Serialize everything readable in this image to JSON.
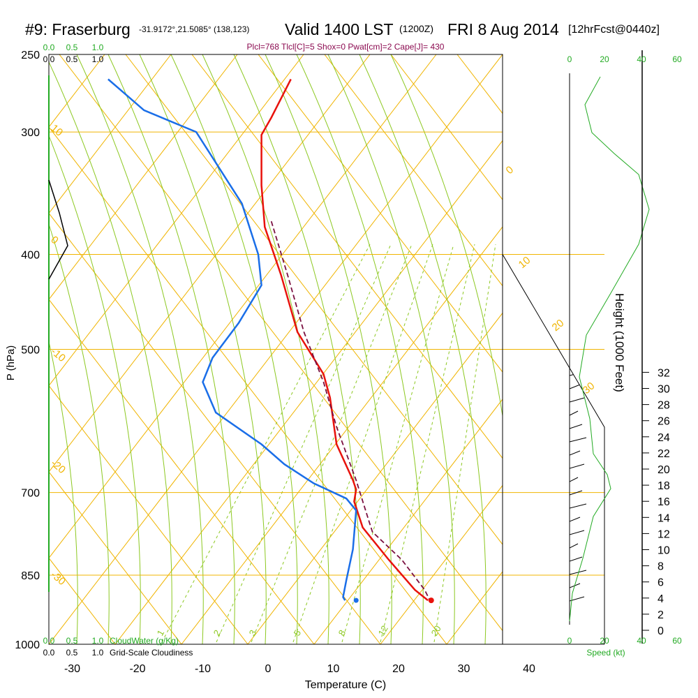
{
  "header": {
    "station": "#9: Fraserburg",
    "coords": "-31.9172°,21.5085° (138,123)",
    "valid": "Valid 1400 LST",
    "zulu": "(1200Z)",
    "date": "FRI 8 Aug 2014",
    "forecast": "[12hrFcst@0440z]"
  },
  "indices": "Plcl=768 Tlcl[C]=5 Shox=0 Pwat[cm]=2 Cape[J]= 430",
  "colors": {
    "temperature": "#e8120c",
    "dewpoint": "#1a6ee8",
    "parcel": "#7a1040",
    "isotherm": "#f0b400",
    "dry_adiabat": "#8cc820",
    "mixing_ratio": "#8cc820",
    "green_text": "#22aa22",
    "frame": "#000000"
  },
  "chart_data": {
    "type": "line",
    "title": "Valid 1400 LST (1200Z) FRI 8 Aug 2014",
    "xlabel": "Temperature (C)",
    "ylabel": "P (hPa)",
    "y2label": "Height (1000 Feet)",
    "x_ticks": [
      "-30",
      "-20",
      "-10",
      "0",
      "10",
      "20",
      "30",
      "40"
    ],
    "pressure_ticks": [
      "250",
      "300",
      "400",
      "500",
      "700",
      "850",
      "1000"
    ],
    "height_ticks": [
      "0",
      "2",
      "4",
      "6",
      "8",
      "10",
      "12",
      "14",
      "16",
      "18",
      "20",
      "22",
      "24",
      "26",
      "28",
      "30",
      "32"
    ],
    "top_scale": [
      "0.0",
      "0.5",
      "1.0"
    ],
    "bottom_scale_labels": [
      "0.0",
      "0.5",
      "1.0",
      "CloudWater (g/Kg)"
    ],
    "cloudiness_labels": [
      "0.0",
      "0.5",
      "1.0",
      "Grid-Scale Cloudiness"
    ],
    "speed_ticks": [
      "0",
      "20",
      "40",
      "60"
    ],
    "speed_label": "Speed (kt)",
    "isotherm_labels": [
      "10",
      "0",
      "-10",
      "-20",
      "-30",
      "0",
      "10",
      "20",
      "30"
    ],
    "mixing_ratio_labels": [
      "1",
      "2",
      "3",
      "5",
      "8",
      "12",
      "20"
    ],
    "series": [
      {
        "name": "temperature",
        "points": [
          {
            "p": 265,
            "t": 3.5
          },
          {
            "p": 290,
            "t": 0.5
          },
          {
            "p": 302,
            "t": -1
          },
          {
            "p": 340,
            "t": -1
          },
          {
            "p": 375,
            "t": -0.5
          },
          {
            "p": 420,
            "t": 2
          },
          {
            "p": 480,
            "t": 4.5
          },
          {
            "p": 530,
            "t": 8.5
          },
          {
            "p": 560,
            "t": 9.5
          },
          {
            "p": 625,
            "t": 10.5
          },
          {
            "p": 680,
            "t": 13
          },
          {
            "p": 695,
            "t": 13.5
          },
          {
            "p": 715,
            "t": 13.2
          },
          {
            "p": 760,
            "t": 14.5
          },
          {
            "p": 820,
            "t": 18.5
          },
          {
            "p": 880,
            "t": 22.5
          },
          {
            "p": 902,
            "t": 24.5
          }
        ]
      },
      {
        "name": "dewpoint",
        "points": [
          {
            "p": 265,
            "t": -24.5
          },
          {
            "p": 285,
            "t": -19
          },
          {
            "p": 300,
            "t": -11
          },
          {
            "p": 355,
            "t": -4
          },
          {
            "p": 400,
            "t": -1.5
          },
          {
            "p": 430,
            "t": -1
          },
          {
            "p": 470,
            "t": -4.5
          },
          {
            "p": 510,
            "t": -8.5
          },
          {
            "p": 540,
            "t": -10
          },
          {
            "p": 580,
            "t": -8
          },
          {
            "p": 625,
            "t": -1
          },
          {
            "p": 655,
            "t": 2.5
          },
          {
            "p": 685,
            "t": 7
          },
          {
            "p": 710,
            "t": 12
          },
          {
            "p": 730,
            "t": 13.5
          },
          {
            "p": 800,
            "t": 13
          },
          {
            "p": 860,
            "t": 12
          },
          {
            "p": 895,
            "t": 11.5
          },
          {
            "p": 902,
            "t": 11.8
          }
        ]
      },
      {
        "name": "parcel",
        "points": [
          {
            "p": 370,
            "t": 0.5
          },
          {
            "p": 420,
            "t": 3
          },
          {
            "p": 480,
            "t": 5.5
          },
          {
            "p": 540,
            "t": 8.5
          },
          {
            "p": 600,
            "t": 10.5
          },
          {
            "p": 680,
            "t": 13.5
          },
          {
            "p": 750,
            "t": 15.5
          },
          {
            "p": 768,
            "t": 16
          },
          {
            "p": 820,
            "t": 20.5
          },
          {
            "p": 880,
            "t": 24
          },
          {
            "p": 902,
            "t": 24.8
          }
        ]
      }
    ],
    "surface": {
      "temperature": 25,
      "dewpoint": 13.5
    },
    "x_range": [
      -34,
      36
    ],
    "p_range": [
      250,
      1000
    ]
  }
}
